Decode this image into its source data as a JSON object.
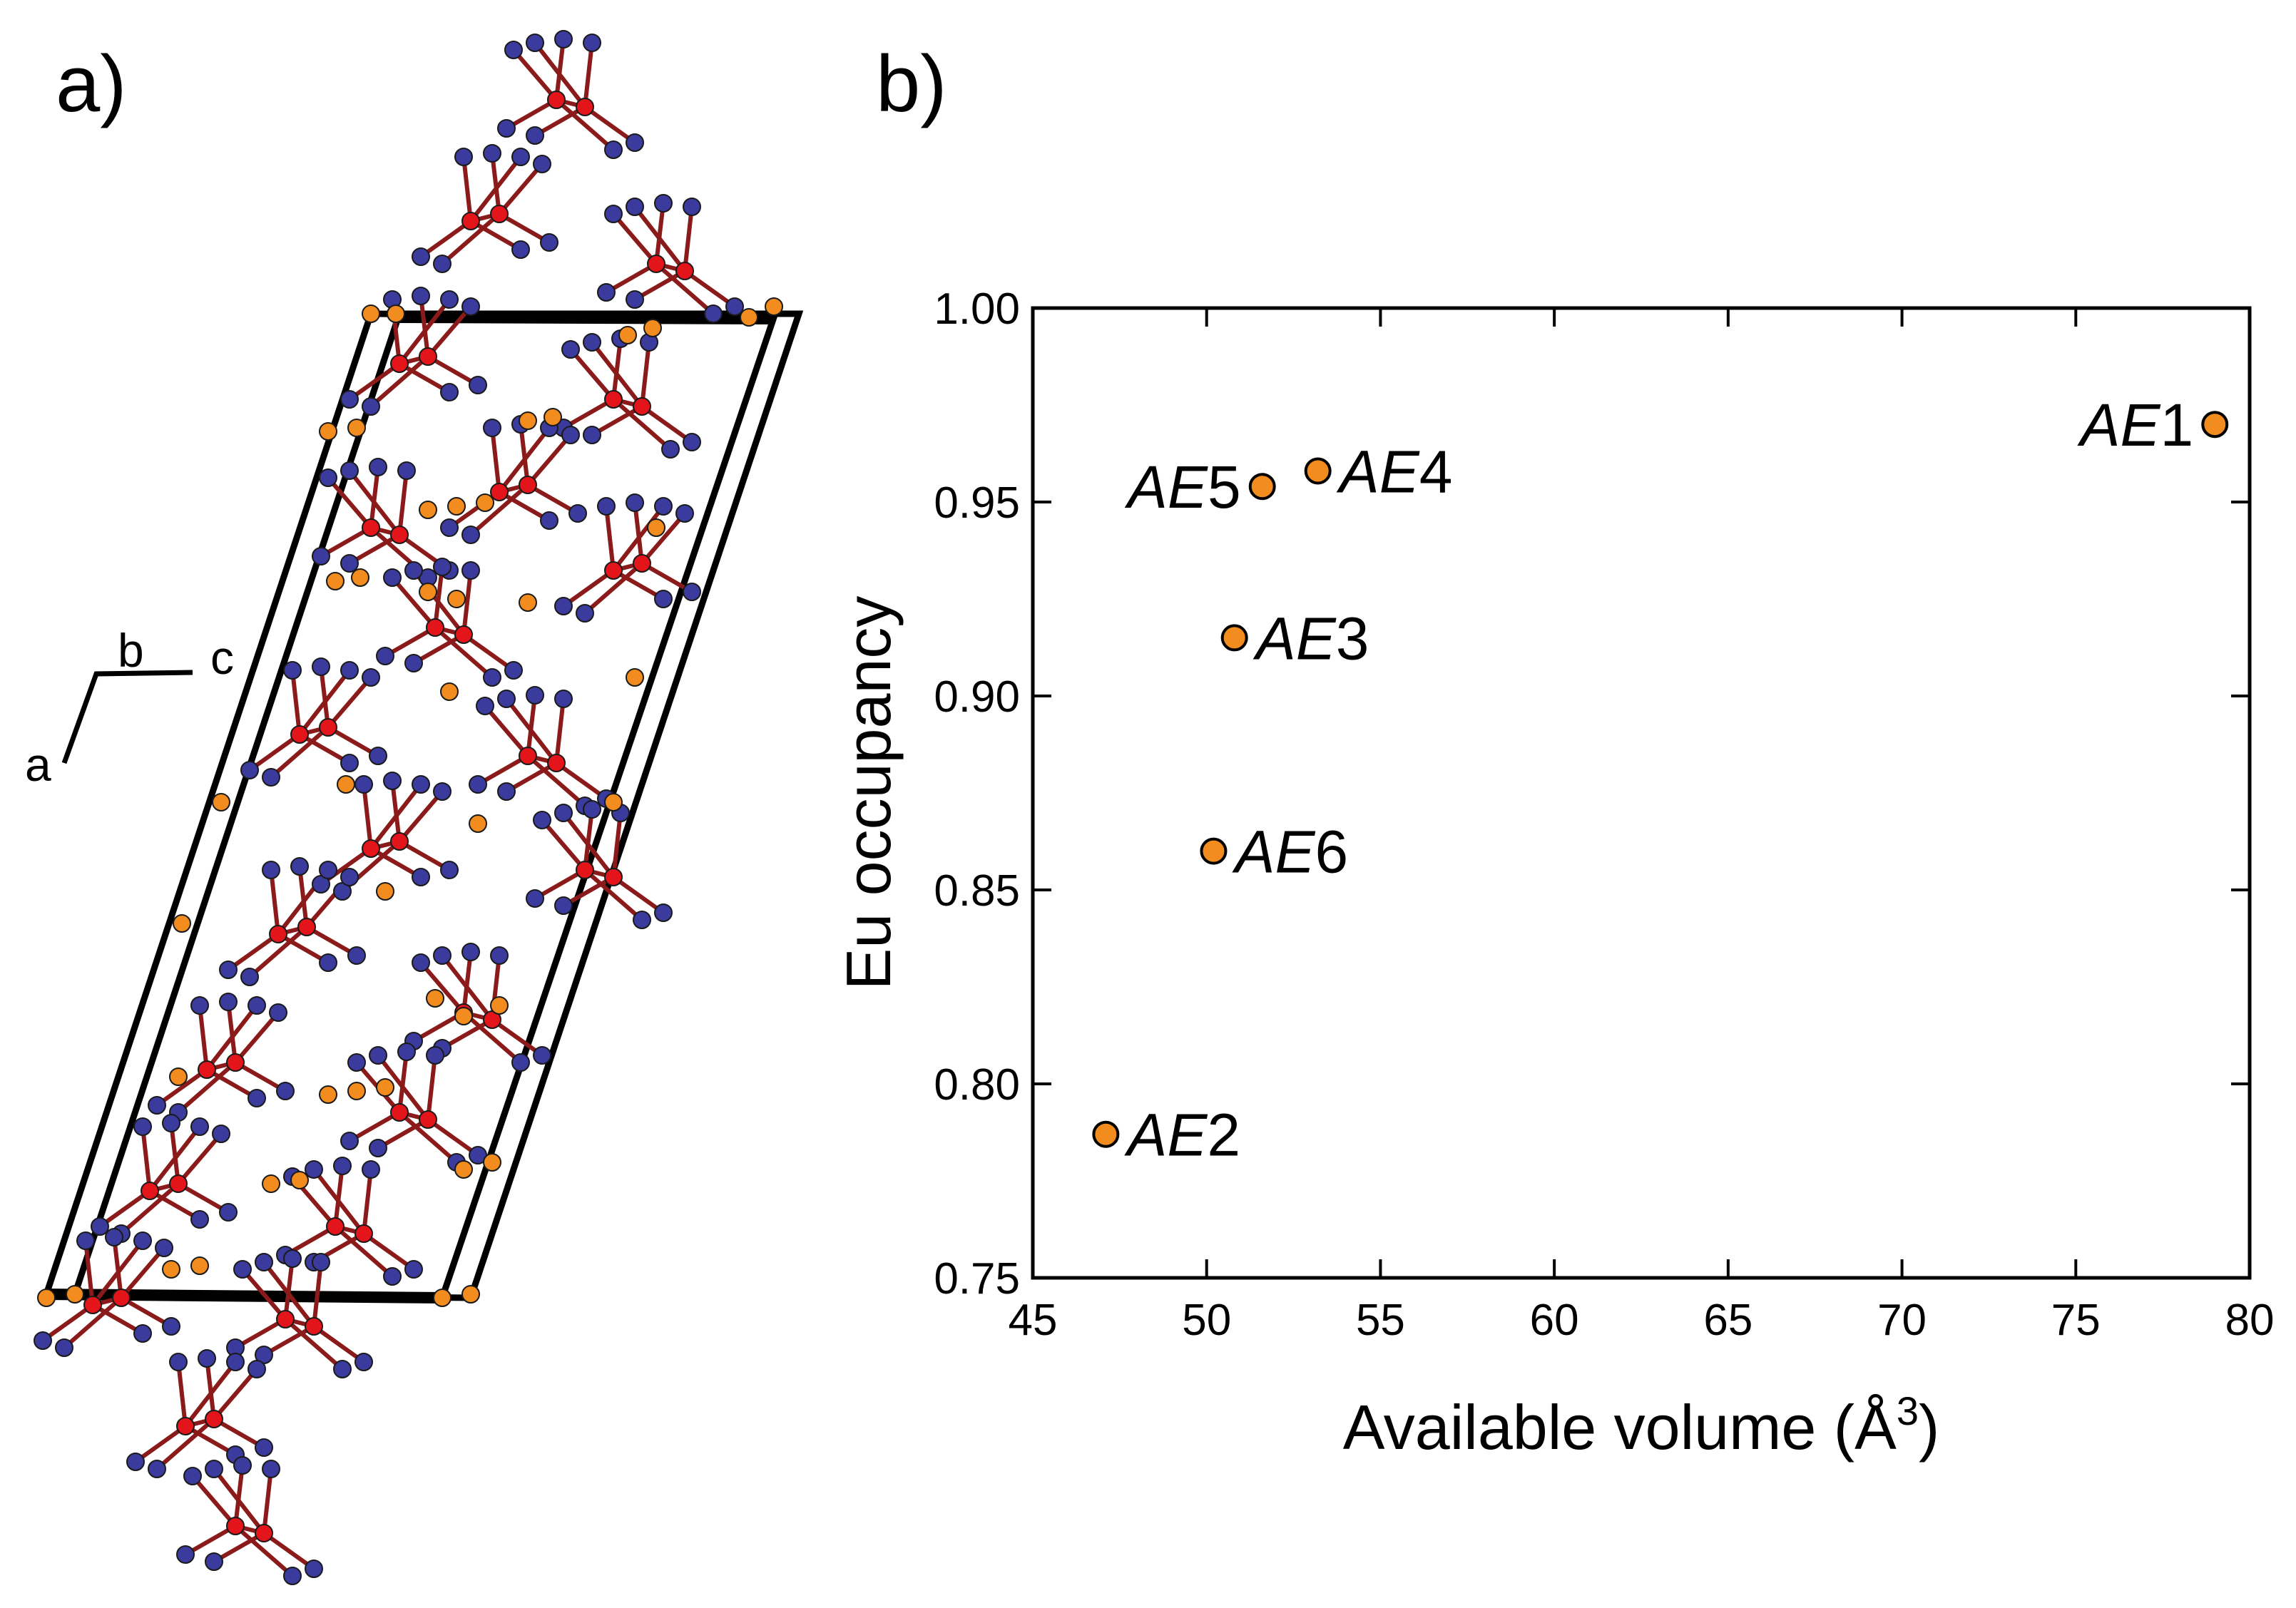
{
  "panels": {
    "a": "a)",
    "b": "b)"
  },
  "structure": {
    "axes": {
      "a": "a",
      "b": "b",
      "c": "c"
    },
    "colors": {
      "eu_site": "#f28c1e",
      "red_atom": "#e3151b",
      "blue_atom": "#3b3b9e",
      "bond": "#8b1a1a",
      "cell": "#000000"
    }
  },
  "chart_data": {
    "type": "scatter",
    "xlabel": "Available volume (Å",
    "xlabel_sup": "3",
    "xlabel_close": ")",
    "ylabel": "Eu occupancy",
    "xlim": [
      45,
      80
    ],
    "ylim": [
      0.75,
      1.0
    ],
    "xticks": [
      45,
      50,
      55,
      60,
      65,
      70,
      75,
      80
    ],
    "yticks": [
      "0.75",
      "0.80",
      "0.85",
      "0.90",
      "0.95",
      "1.00"
    ],
    "marker_color": "#f28c1e",
    "points": [
      {
        "prefix": "AE",
        "num": "1",
        "x": 79.0,
        "y": 0.97,
        "side": "left"
      },
      {
        "prefix": "AE",
        "num": "2",
        "x": 47.1,
        "y": 0.787,
        "side": "right"
      },
      {
        "prefix": "AE",
        "num": "3",
        "x": 50.8,
        "y": 0.915,
        "side": "right"
      },
      {
        "prefix": "AE",
        "num": "4",
        "x": 53.2,
        "y": 0.958,
        "side": "right"
      },
      {
        "prefix": "AE",
        "num": "5",
        "x": 51.6,
        "y": 0.954,
        "side": "left"
      },
      {
        "prefix": "AE",
        "num": "6",
        "x": 50.2,
        "y": 0.86,
        "side": "right"
      }
    ]
  }
}
